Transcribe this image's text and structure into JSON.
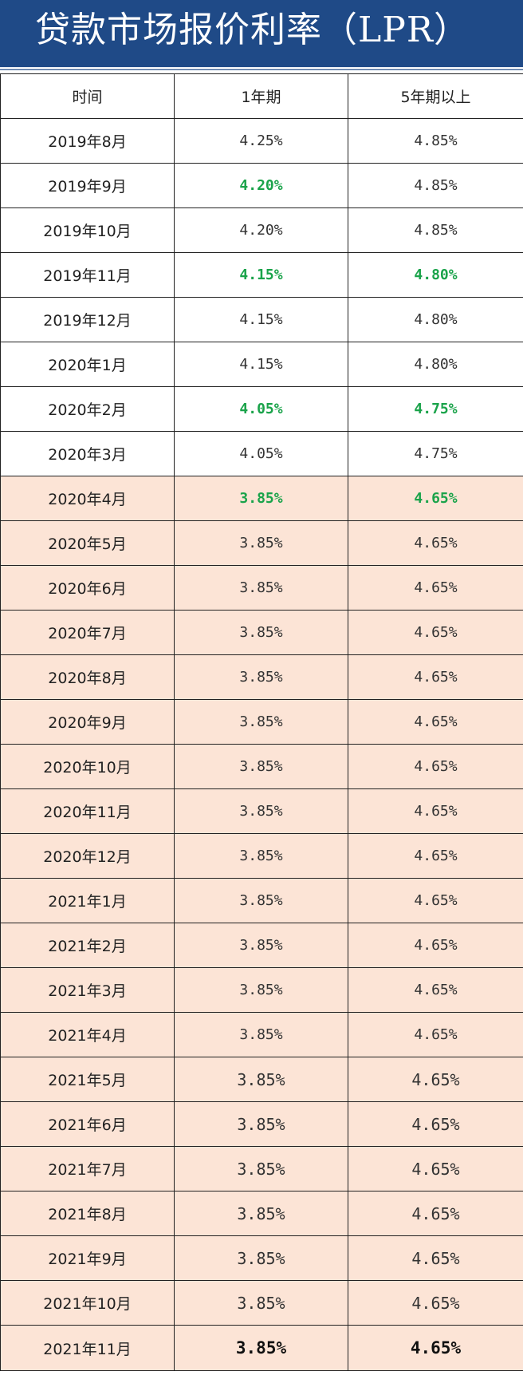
{
  "title": "贷款市场报价利率（LPR）",
  "colors": {
    "title_bg": "#1f4a87",
    "title_text": "#ffffff",
    "peach_row": "#fce4d6",
    "cut_green": "#1aa34a"
  },
  "headers": [
    "时间",
    "1年期",
    "5年期以上"
  ],
  "rows": [
    {
      "date": "2019年8月",
      "y1": "4.25%",
      "y5": "4.85%",
      "y1_cut": false,
      "y5_cut": false,
      "shade": "white"
    },
    {
      "date": "2019年9月",
      "y1": "4.20%",
      "y5": "4.85%",
      "y1_cut": true,
      "y5_cut": false,
      "shade": "white"
    },
    {
      "date": "2019年10月",
      "y1": "4.20%",
      "y5": "4.85%",
      "y1_cut": false,
      "y5_cut": false,
      "shade": "white"
    },
    {
      "date": "2019年11月",
      "y1": "4.15%",
      "y5": "4.80%",
      "y1_cut": true,
      "y5_cut": true,
      "shade": "white"
    },
    {
      "date": "2019年12月",
      "y1": "4.15%",
      "y5": "4.80%",
      "y1_cut": false,
      "y5_cut": false,
      "shade": "white"
    },
    {
      "date": "2020年1月",
      "y1": "4.15%",
      "y5": "4.80%",
      "y1_cut": false,
      "y5_cut": false,
      "shade": "white"
    },
    {
      "date": "2020年2月",
      "y1": "4.05%",
      "y5": "4.75%",
      "y1_cut": true,
      "y5_cut": true,
      "shade": "white"
    },
    {
      "date": "2020年3月",
      "y1": "4.05%",
      "y5": "4.75%",
      "y1_cut": false,
      "y5_cut": false,
      "shade": "white"
    },
    {
      "date": "2020年4月",
      "y1": "3.85%",
      "y5": "4.65%",
      "y1_cut": true,
      "y5_cut": true,
      "shade": "peach"
    },
    {
      "date": "2020年5月",
      "y1": "3.85%",
      "y5": "4.65%",
      "y1_cut": false,
      "y5_cut": false,
      "shade": "peach"
    },
    {
      "date": "2020年6月",
      "y1": "3.85%",
      "y5": "4.65%",
      "y1_cut": false,
      "y5_cut": false,
      "shade": "peach"
    },
    {
      "date": "2020年7月",
      "y1": "3.85%",
      "y5": "4.65%",
      "y1_cut": false,
      "y5_cut": false,
      "shade": "peach"
    },
    {
      "date": "2020年8月",
      "y1": "3.85%",
      "y5": "4.65%",
      "y1_cut": false,
      "y5_cut": false,
      "shade": "peach"
    },
    {
      "date": "2020年9月",
      "y1": "3.85%",
      "y5": "4.65%",
      "y1_cut": false,
      "y5_cut": false,
      "shade": "peach"
    },
    {
      "date": "2020年10月",
      "y1": "3.85%",
      "y5": "4.65%",
      "y1_cut": false,
      "y5_cut": false,
      "shade": "peach"
    },
    {
      "date": "2020年11月",
      "y1": "3.85%",
      "y5": "4.65%",
      "y1_cut": false,
      "y5_cut": false,
      "shade": "peach"
    },
    {
      "date": "2020年12月",
      "y1": "3.85%",
      "y5": "4.65%",
      "y1_cut": false,
      "y5_cut": false,
      "shade": "peach"
    },
    {
      "date": "2021年1月",
      "y1": "3.85%",
      "y5": "4.65%",
      "y1_cut": false,
      "y5_cut": false,
      "shade": "peach"
    },
    {
      "date": "2021年2月",
      "y1": "3.85%",
      "y5": "4.65%",
      "y1_cut": false,
      "y5_cut": false,
      "shade": "peach"
    },
    {
      "date": "2021年3月",
      "y1": "3.85%",
      "y5": "4.65%",
      "y1_cut": false,
      "y5_cut": false,
      "shade": "peach"
    },
    {
      "date": "2021年4月",
      "y1": "3.85%",
      "y5": "4.65%",
      "y1_cut": false,
      "y5_cut": false,
      "shade": "peach"
    },
    {
      "date": "2021年5月",
      "y1": "3.85%",
      "y5": "4.65%",
      "y1_cut": false,
      "y5_cut": false,
      "shade": "peach"
    },
    {
      "date": "2021年6月",
      "y1": "3.85%",
      "y5": "4.65%",
      "y1_cut": false,
      "y5_cut": false,
      "shade": "peach"
    },
    {
      "date": "2021年7月",
      "y1": "3.85%",
      "y5": "4.65%",
      "y1_cut": false,
      "y5_cut": false,
      "shade": "peach"
    },
    {
      "date": "2021年8月",
      "y1": "3.85%",
      "y5": "4.65%",
      "y1_cut": false,
      "y5_cut": false,
      "shade": "peach"
    },
    {
      "date": "2021年9月",
      "y1": "3.85%",
      "y5": "4.65%",
      "y1_cut": false,
      "y5_cut": false,
      "shade": "peach"
    },
    {
      "date": "2021年10月",
      "y1": "3.85%",
      "y5": "4.65%",
      "y1_cut": false,
      "y5_cut": false,
      "shade": "peach"
    },
    {
      "date": "2021年11月",
      "y1": "3.85%",
      "y5": "4.65%",
      "y1_cut": false,
      "y5_cut": false,
      "shade": "peach"
    }
  ]
}
